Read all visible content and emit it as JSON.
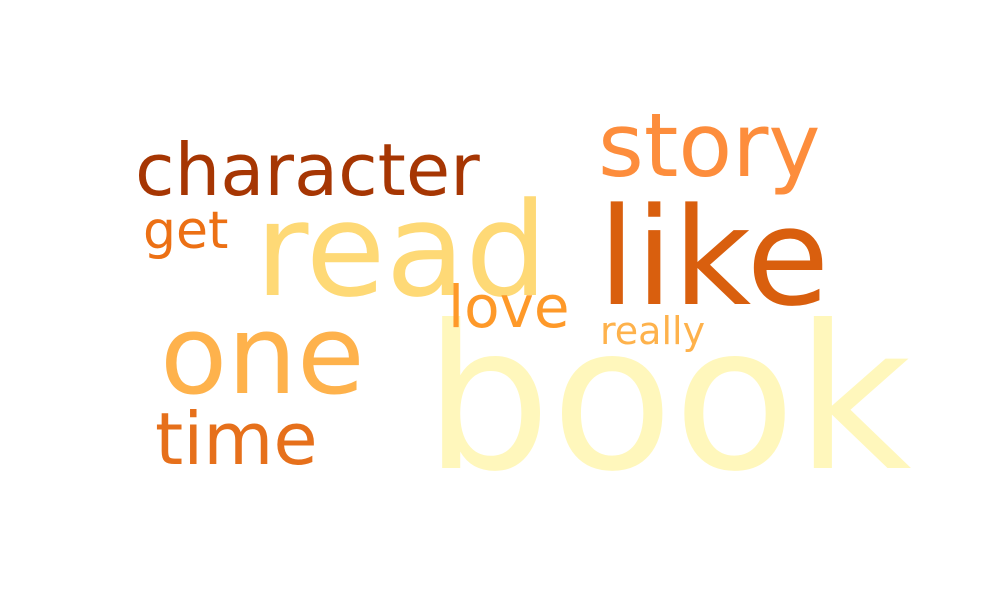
{
  "words": [
    {
      "text": "book",
      "color": "#fff7bc"
    },
    {
      "text": "read",
      "color": "#fed976"
    },
    {
      "text": "like",
      "color": "#d95f0e"
    },
    {
      "text": "one",
      "color": "#feb24c"
    },
    {
      "text": "story",
      "color": "#fd8d3c"
    },
    {
      "text": "character",
      "color": "#a63603"
    },
    {
      "text": "time",
      "color": "#e6701b"
    },
    {
      "text": "love",
      "color": "#fe9929"
    },
    {
      "text": "get",
      "color": "#ec7014"
    },
    {
      "text": "really",
      "color": "#feb24c"
    }
  ]
}
